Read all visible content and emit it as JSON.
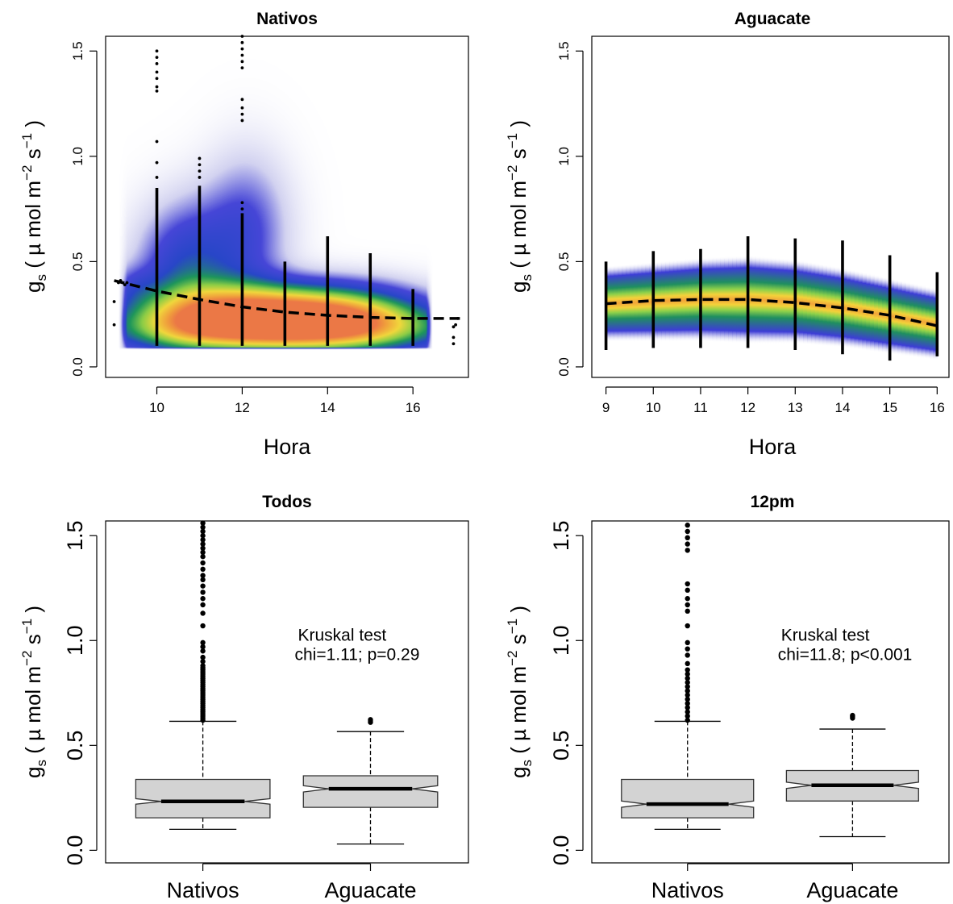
{
  "chart_data": [
    {
      "id": "nativos",
      "type": "scatter",
      "title": "Nativos",
      "xlabel": "Hora",
      "ylabel": "gs ( µ mol m−2 s−1 )",
      "ylabel_parts": {
        "g": "g",
        "g_sub": "s",
        "mid": "( µ mol m",
        "exp1": "−2",
        "s": " s",
        "exp2": "−1",
        "close": " )"
      },
      "xlim": [
        8.8,
        17.3
      ],
      "ylim": [
        -0.05,
        1.57
      ],
      "xticks": [
        10,
        12,
        14,
        16
      ],
      "yticks": [
        0.0,
        0.5,
        1.0,
        1.5
      ],
      "ytick_labels": [
        "0.0",
        "0.5",
        "1.0",
        "1.5"
      ],
      "density": [
        {
          "x": 12.8,
          "y": 0.18,
          "sx": 2.6,
          "sy": 0.08,
          "w": 0.85
        },
        {
          "x": 12.3,
          "y": 0.28,
          "sx": 1.7,
          "sy": 0.09,
          "w": 0.7
        },
        {
          "x": 10.7,
          "y": 0.45,
          "sx": 0.8,
          "sy": 0.22,
          "w": 0.35
        },
        {
          "x": 12.1,
          "y": 0.65,
          "sx": 0.7,
          "sy": 0.25,
          "w": 0.22
        },
        {
          "x": 14.6,
          "y": 0.25,
          "sx": 1.3,
          "sy": 0.1,
          "w": 0.4
        },
        {
          "x": 9.4,
          "y": 0.38,
          "sx": 0.4,
          "sy": 0.07,
          "w": 0.12
        }
      ],
      "columns": [
        {
          "x": 10,
          "min": 0.1,
          "max": 0.85,
          "outliers": [
            0.9,
            0.97,
            1.07,
            1.31,
            1.33,
            1.37,
            1.4,
            1.44,
            1.47,
            1.5
          ]
        },
        {
          "x": 11,
          "min": 0.1,
          "max": 0.86,
          "outliers": [
            0.9,
            0.93,
            0.96,
            0.99
          ]
        },
        {
          "x": 12,
          "min": 0.1,
          "max": 0.73,
          "outliers": [
            0.75,
            0.78,
            1.17,
            1.2,
            1.23,
            1.27,
            1.42,
            1.45,
            1.48,
            1.51,
            1.54,
            1.57
          ]
        },
        {
          "x": 13,
          "min": 0.1,
          "max": 0.5,
          "outliers": []
        },
        {
          "x": 14,
          "min": 0.1,
          "max": 0.62,
          "outliers": []
        },
        {
          "x": 15,
          "min": 0.1,
          "max": 0.54,
          "outliers": []
        },
        {
          "x": 16,
          "min": 0.1,
          "max": 0.37,
          "outliers": []
        }
      ],
      "points": [
        [
          9.0,
          0.2
        ],
        [
          9.0,
          0.31
        ],
        [
          9.1,
          0.4
        ],
        [
          9.15,
          0.41
        ],
        [
          9.2,
          0.4
        ],
        [
          9.25,
          0.39
        ],
        [
          9.3,
          0.4
        ],
        [
          16.95,
          0.11
        ],
        [
          16.95,
          0.14
        ],
        [
          16.95,
          0.19
        ],
        [
          17.0,
          0.2
        ],
        [
          17.05,
          0.23
        ]
      ],
      "trend": {
        "x": [
          9.0,
          9.5,
          10,
          11,
          12,
          13,
          14,
          15,
          16,
          17.1
        ],
        "y": [
          0.41,
          0.385,
          0.36,
          0.32,
          0.285,
          0.26,
          0.245,
          0.235,
          0.23,
          0.23
        ]
      }
    },
    {
      "id": "aguacate",
      "type": "scatter",
      "title": "Aguacate",
      "xlabel": "Hora",
      "ylabel": "gs ( µ mol m−2 s−1 )",
      "ylabel_parts": {
        "g": "g",
        "g_sub": "s",
        "mid": "( µ mol m",
        "exp1": "−2",
        "s": " s",
        "exp2": "−1",
        "close": " )"
      },
      "xlim": [
        8.7,
        16.25
      ],
      "ylim": [
        -0.05,
        1.57
      ],
      "xticks": [
        9,
        10,
        11,
        12,
        13,
        14,
        15,
        16
      ],
      "yticks": [
        0.0,
        0.5,
        1.0,
        1.5
      ],
      "ytick_labels": [
        "0.0",
        "0.5",
        "1.0",
        "1.5"
      ],
      "band": {
        "x": [
          9,
          10,
          11,
          12,
          13,
          14,
          15,
          16
        ],
        "center": [
          0.3,
          0.31,
          0.32,
          0.32,
          0.31,
          0.28,
          0.24,
          0.2
        ],
        "halfwidth": [
          0.18,
          0.19,
          0.2,
          0.21,
          0.2,
          0.19,
          0.18,
          0.17
        ]
      },
      "columns": [
        {
          "x": 9,
          "min": 0.08,
          "max": 0.5,
          "outliers": []
        },
        {
          "x": 10,
          "min": 0.09,
          "max": 0.55,
          "outliers": []
        },
        {
          "x": 11,
          "min": 0.09,
          "max": 0.56,
          "outliers": []
        },
        {
          "x": 12,
          "min": 0.09,
          "max": 0.62,
          "outliers": []
        },
        {
          "x": 13,
          "min": 0.08,
          "max": 0.61,
          "outliers": []
        },
        {
          "x": 14,
          "min": 0.06,
          "max": 0.6,
          "outliers": []
        },
        {
          "x": 15,
          "min": 0.03,
          "max": 0.53,
          "outliers": []
        },
        {
          "x": 16,
          "min": 0.05,
          "max": 0.45,
          "outliers": []
        }
      ],
      "points": [],
      "trend": {
        "x": [
          9,
          10,
          11,
          12,
          13,
          14,
          15,
          16
        ],
        "y": [
          0.3,
          0.315,
          0.32,
          0.32,
          0.305,
          0.28,
          0.245,
          0.195
        ]
      }
    },
    {
      "id": "todos",
      "type": "box",
      "title": "Todos",
      "ylabel": "gs ( µ mol m−2 s−1 )",
      "ylabel_parts": {
        "g": "g",
        "g_sub": "s",
        "mid": "( µ mol m",
        "exp1": "−2",
        "s": " s",
        "exp2": "−1",
        "close": " )"
      },
      "categories": [
        "Nativos",
        "Aguacate"
      ],
      "ylim": [
        -0.06,
        1.57
      ],
      "yticks": [
        0.0,
        0.5,
        1.0,
        1.5
      ],
      "ytick_labels": [
        "0.0",
        "0.5",
        "1.0",
        "1.5"
      ],
      "boxes": [
        {
          "name": "Nativos",
          "whisker_low": 0.1,
          "q1": 0.155,
          "median": 0.233,
          "q3": 0.338,
          "whisker_high": 0.615,
          "notch_low": 0.22,
          "notch_high": 0.246,
          "outliers": [
            0.62,
            0.63,
            0.64,
            0.65,
            0.66,
            0.67,
            0.68,
            0.69,
            0.7,
            0.71,
            0.72,
            0.73,
            0.74,
            0.75,
            0.76,
            0.77,
            0.78,
            0.79,
            0.8,
            0.81,
            0.82,
            0.83,
            0.84,
            0.85,
            0.86,
            0.87,
            0.88,
            0.9,
            0.92,
            0.95,
            0.97,
            0.99,
            1.07,
            1.13,
            1.17,
            1.2,
            1.23,
            1.26,
            1.29,
            1.31,
            1.34,
            1.37,
            1.4,
            1.42,
            1.44,
            1.46,
            1.48,
            1.5,
            1.52,
            1.54,
            1.56
          ]
        },
        {
          "name": "Aguacate",
          "whisker_low": 0.03,
          "q1": 0.205,
          "median": 0.293,
          "q3": 0.355,
          "whisker_high": 0.566,
          "notch_low": 0.278,
          "notch_high": 0.308,
          "outliers": [
            0.61,
            0.617,
            0.623
          ]
        }
      ],
      "annotation": [
        "Kruskal test",
        "chi=1.11; p=0.29"
      ]
    },
    {
      "id": "12pm",
      "type": "box",
      "title": "12pm",
      "ylabel": "gs ( µ mol m−2 s−1 )",
      "ylabel_parts": {
        "g": "g",
        "g_sub": "s",
        "mid": "( µ mol m",
        "exp1": "−2",
        "s": " s",
        "exp2": "−1",
        "close": " )"
      },
      "categories": [
        "Nativos",
        "Aguacate"
      ],
      "ylim": [
        -0.06,
        1.57
      ],
      "yticks": [
        0.0,
        0.5,
        1.0,
        1.5
      ],
      "ytick_labels": [
        "0.0",
        "0.5",
        "1.0",
        "1.5"
      ],
      "boxes": [
        {
          "name": "Nativos",
          "whisker_low": 0.1,
          "q1": 0.155,
          "median": 0.22,
          "q3": 0.338,
          "whisker_high": 0.615,
          "notch_low": 0.205,
          "notch_high": 0.235,
          "outliers": [
            0.62,
            0.64,
            0.66,
            0.68,
            0.7,
            0.72,
            0.74,
            0.76,
            0.78,
            0.8,
            0.82,
            0.84,
            0.86,
            0.89,
            0.93,
            0.96,
            0.99,
            1.07,
            1.14,
            1.17,
            1.2,
            1.24,
            1.27,
            1.43,
            1.46,
            1.49,
            1.52,
            1.55
          ]
        },
        {
          "name": "Aguacate",
          "whisker_low": 0.065,
          "q1": 0.235,
          "median": 0.31,
          "q3": 0.38,
          "whisker_high": 0.578,
          "notch_low": 0.295,
          "notch_high": 0.325,
          "outliers": [
            0.63,
            0.637,
            0.643
          ]
        }
      ],
      "annotation": [
        "Kruskal test",
        "chi=11.8; p<0.001"
      ]
    }
  ]
}
